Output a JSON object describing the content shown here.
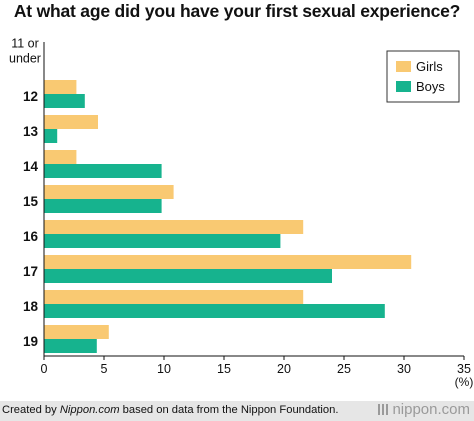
{
  "title": "At what age did you have your first sexual experience?",
  "footer": {
    "credit_prefix": "Created by ",
    "credit_site": "Nippon.com",
    "credit_suffix": " based on data from the Nippon Foundation.",
    "brand": "nippon.com"
  },
  "colors": {
    "girls": "#f9c972",
    "boys": "#16b38e",
    "axis": "#111111"
  },
  "chart_data": {
    "type": "bar",
    "orientation": "horizontal",
    "categories": [
      "11 or under",
      "12",
      "13",
      "14",
      "15",
      "16",
      "17",
      "18",
      "19"
    ],
    "series": [
      {
        "name": "Girls",
        "values": [
          0,
          2.7,
          4.5,
          2.7,
          10.8,
          21.6,
          30.6,
          21.6,
          5.4
        ]
      },
      {
        "name": "Boys",
        "values": [
          0,
          3.4,
          1.1,
          9.8,
          9.8,
          19.7,
          24.0,
          28.4,
          4.4
        ]
      }
    ],
    "xlim": [
      0,
      35
    ],
    "xticks": [
      0,
      5,
      10,
      15,
      20,
      25,
      30,
      35
    ],
    "xunit": "(%)",
    "legend_position": "top-right",
    "grid": false
  }
}
